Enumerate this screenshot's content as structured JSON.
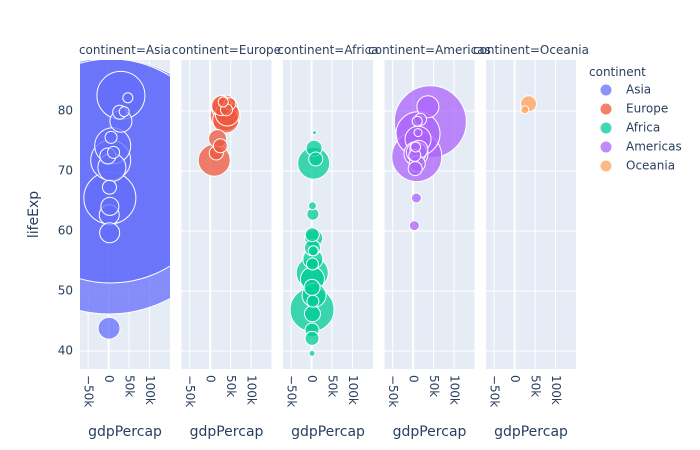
{
  "chart_data": {
    "type": "scatter",
    "subtype": "bubble",
    "facet_field": "continent",
    "facets": [
      {
        "label": "continent=Asia",
        "color": "#636efa"
      },
      {
        "label": "continent=Europe",
        "color": "#ef553b"
      },
      {
        "label": "continent=Africa",
        "color": "#00cc96"
      },
      {
        "label": "continent=Americas",
        "color": "#ab63fa"
      },
      {
        "label": "continent=Oceania",
        "color": "#ffa15a"
      }
    ],
    "xlabel": "gdpPercap",
    "ylabel": "lifeExp",
    "xlim": [
      -70000,
      150000
    ],
    "ylim": [
      37,
      88.5
    ],
    "x_ticks": [
      -50000,
      0,
      50000,
      100000
    ],
    "x_tick_labels": [
      "−50k",
      "0",
      "50k",
      "100k"
    ],
    "y_ticks": [
      40,
      50,
      60,
      70,
      80
    ],
    "y_tick_labels": [
      "40",
      "50",
      "60",
      "70",
      "80"
    ],
    "grid": true,
    "legend": {
      "title": "continent",
      "placement": "right",
      "entries": [
        {
          "name": "Asia",
          "color": "#636efa"
        },
        {
          "name": "Europe",
          "color": "#ef553b"
        },
        {
          "name": "Africa",
          "color": "#00cc96"
        },
        {
          "name": "Americas",
          "color": "#ab63fa"
        },
        {
          "name": "Oceania",
          "color": "#ffa15a"
        }
      ]
    },
    "series": [
      {
        "name": "Asia",
        "color": "#636efa",
        "points": [
          {
            "x": 1000,
            "y": 67.5,
            "r": 128
          },
          {
            "x": 5000,
            "y": 70.0,
            "r": 112
          },
          {
            "x": 30000,
            "y": 82.6,
            "r": 24
          },
          {
            "x": 30000,
            "y": 78.3,
            "r": 11
          },
          {
            "x": 27000,
            "y": 79.8,
            "r": 7
          },
          {
            "x": 38000,
            "y": 79.9,
            "r": 5
          },
          {
            "x": 47000,
            "y": 82.2,
            "r": 5
          },
          {
            "x": 10000,
            "y": 74.2,
            "r": 18
          },
          {
            "x": 5000,
            "y": 71.8,
            "r": 20
          },
          {
            "x": 3000,
            "y": 65.5,
            "r": 26
          },
          {
            "x": 8000,
            "y": 70.6,
            "r": 14
          },
          {
            "x": 3000,
            "y": 64.1,
            "r": 9
          },
          {
            "x": 1500,
            "y": 62.7,
            "r": 10
          },
          {
            "x": 2500,
            "y": 59.7,
            "r": 10
          },
          {
            "x": -2000,
            "y": 72.5,
            "r": 8
          },
          {
            "x": 12000,
            "y": 73.1,
            "r": 6
          },
          {
            "x": 2000,
            "y": 67.3,
            "r": 7
          },
          {
            "x": 6000,
            "y": 75.6,
            "r": 6
          },
          {
            "x": 1000,
            "y": 43.8,
            "r": 11
          }
        ]
      },
      {
        "name": "Europe",
        "color": "#ef553b",
        "points": [
          {
            "x": 36000,
            "y": 80.5,
            "r": 13
          },
          {
            "x": 37000,
            "y": 79.2,
            "r": 15
          },
          {
            "x": 42000,
            "y": 79.5,
            "r": 12
          },
          {
            "x": 28000,
            "y": 80.9,
            "r": 10
          },
          {
            "x": 38000,
            "y": 78.5,
            "r": 13
          },
          {
            "x": 18000,
            "y": 75.4,
            "r": 9
          },
          {
            "x": 10000,
            "y": 71.8,
            "r": 16
          },
          {
            "x": 15000,
            "y": 73.0,
            "r": 7
          },
          {
            "x": 25000,
            "y": 74.2,
            "r": 7
          },
          {
            "x": 48000,
            "y": 81.2,
            "r": 6
          },
          {
            "x": 40000,
            "y": 80.2,
            "r": 6
          },
          {
            "x": 32000,
            "y": 81.5,
            "r": 5
          }
        ]
      },
      {
        "name": "Africa",
        "color": "#00cc96",
        "points": [
          {
            "x": 5000,
            "y": 71.3,
            "r": 16
          },
          {
            "x": 6000,
            "y": 73.8,
            "r": 8
          },
          {
            "x": 10000,
            "y": 72.0,
            "r": 7
          },
          {
            "x": 3000,
            "y": 62.8,
            "r": 6
          },
          {
            "x": 5000,
            "y": 58.8,
            "r": 9
          },
          {
            "x": 2000,
            "y": 57.2,
            "r": 8
          },
          {
            "x": 3000,
            "y": 55.3,
            "r": 10
          },
          {
            "x": 1500,
            "y": 53.0,
            "r": 16
          },
          {
            "x": 2000,
            "y": 52.0,
            "r": 12
          },
          {
            "x": 1000,
            "y": 50.6,
            "r": 8
          },
          {
            "x": 6000,
            "y": 49.3,
            "r": 12
          },
          {
            "x": 1000,
            "y": 46.9,
            "r": 22
          },
          {
            "x": 2000,
            "y": 46.2,
            "r": 8
          },
          {
            "x": 1000,
            "y": 43.5,
            "r": 7
          },
          {
            "x": 1000,
            "y": 42.1,
            "r": 7
          },
          {
            "x": 3000,
            "y": 48.3,
            "r": 6
          },
          {
            "x": 2000,
            "y": 54.5,
            "r": 6
          },
          {
            "x": 4000,
            "y": 56.7,
            "r": 5
          },
          {
            "x": 1500,
            "y": 59.4,
            "r": 7
          },
          {
            "x": 2000,
            "y": 64.2,
            "r": 4
          },
          {
            "x": 1000,
            "y": 39.6,
            "r": 3
          },
          {
            "x": 7000,
            "y": 76.4,
            "r": 2
          }
        ]
      },
      {
        "name": "Americas",
        "color": "#ab63fa",
        "points": [
          {
            "x": 42000,
            "y": 78.2,
            "r": 36
          },
          {
            "x": 9000,
            "y": 72.4,
            "r": 25
          },
          {
            "x": 12000,
            "y": 76.2,
            "r": 22
          },
          {
            "x": 36000,
            "y": 80.7,
            "r": 11
          },
          {
            "x": 12000,
            "y": 75.3,
            "r": 13
          },
          {
            "x": 8000,
            "y": 73.1,
            "r": 10
          },
          {
            "x": 7000,
            "y": 72.9,
            "r": 12
          },
          {
            "x": 10000,
            "y": 71.2,
            "r": 8
          },
          {
            "x": 14000,
            "y": 73.6,
            "r": 9
          },
          {
            "x": 5000,
            "y": 70.4,
            "r": 7
          },
          {
            "x": 18000,
            "y": 78.6,
            "r": 6
          },
          {
            "x": 10000,
            "y": 78.3,
            "r": 5
          },
          {
            "x": 12000,
            "y": 76.4,
            "r": 4
          },
          {
            "x": 6000,
            "y": 74.0,
            "r": 5
          },
          {
            "x": 4000,
            "y": 72.6,
            "r": 6
          },
          {
            "x": 8000,
            "y": 65.5,
            "r": 5
          },
          {
            "x": 3000,
            "y": 60.9,
            "r": 5
          }
        ]
      },
      {
        "name": "Oceania",
        "color": "#ffa15a",
        "points": [
          {
            "x": 34000,
            "y": 81.2,
            "r": 8
          },
          {
            "x": 25000,
            "y": 80.2,
            "r": 4
          }
        ]
      }
    ]
  }
}
